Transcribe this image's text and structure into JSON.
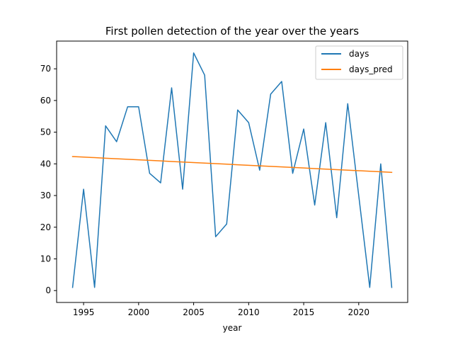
{
  "chart_data": {
    "type": "line",
    "title": "First pollen detection of the year over the years",
    "xlabel": "year",
    "ylabel": "",
    "xlim": [
      1992.55,
      2024.45
    ],
    "ylim": [
      -3.75,
      78.75
    ],
    "x_ticks": [
      1995,
      2000,
      2005,
      2010,
      2015,
      2020
    ],
    "y_ticks": [
      0,
      10,
      20,
      30,
      40,
      50,
      60,
      70
    ],
    "grid": false,
    "legend_position": "top-right",
    "x": [
      1994,
      1995,
      1996,
      1997,
      1998,
      1999,
      2000,
      2001,
      2002,
      2003,
      2004,
      2005,
      2006,
      2007,
      2008,
      2009,
      2010,
      2011,
      2012,
      2013,
      2014,
      2015,
      2016,
      2017,
      2018,
      2019,
      2020,
      2021,
      2022,
      2023
    ],
    "series": [
      {
        "name": "days",
        "color": "#1f77b4",
        "values": [
          1,
          32,
          1,
          52,
          47,
          58,
          58,
          37,
          34,
          64,
          32,
          75,
          68,
          17,
          21,
          57,
          53,
          38,
          62,
          66,
          37,
          51,
          27,
          53,
          23,
          59,
          30,
          1,
          40,
          1
        ]
      },
      {
        "name": "days_pred",
        "color": "#ff7f0e",
        "values": [
          42.3,
          42.13,
          41.96,
          41.78,
          41.61,
          41.44,
          41.27,
          41.1,
          40.93,
          40.75,
          40.58,
          40.41,
          40.24,
          40.07,
          39.9,
          39.72,
          39.55,
          39.38,
          39.21,
          39.04,
          38.87,
          38.69,
          38.52,
          38.35,
          38.18,
          38.01,
          37.84,
          37.66,
          37.49,
          37.32
        ]
      }
    ]
  }
}
